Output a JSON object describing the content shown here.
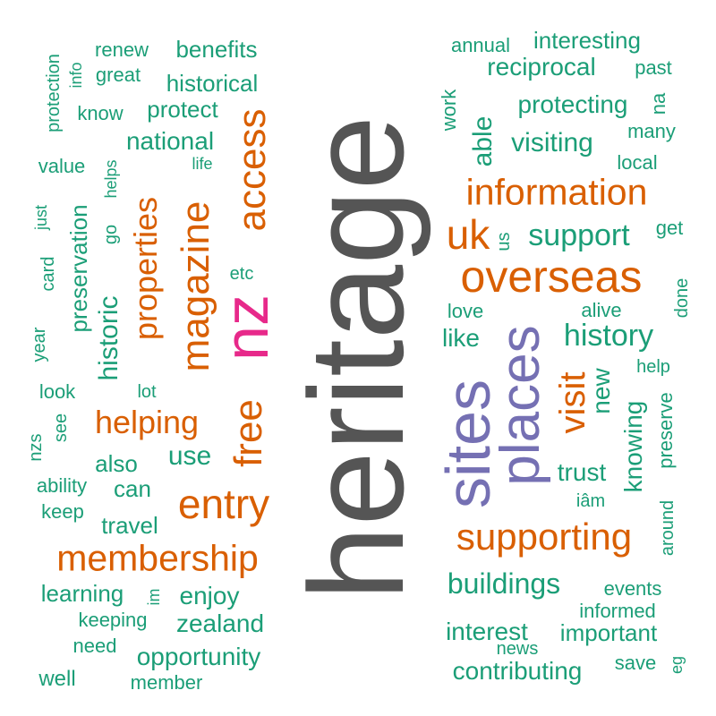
{
  "colors": {
    "gray": "#555555",
    "pink": "#e7298a",
    "purple": "#7570b3",
    "orange": "#d95f02",
    "green": "#1b9e77"
  },
  "words": [
    {
      "id": "heritage",
      "text": "heritage",
      "color": "gray"
    },
    {
      "id": "nz",
      "text": "nz",
      "color": "pink"
    },
    {
      "id": "sites",
      "text": "sites",
      "color": "purple"
    },
    {
      "id": "places",
      "text": "places",
      "color": "purple"
    },
    {
      "id": "overseas",
      "text": "overseas",
      "color": "orange"
    },
    {
      "id": "information",
      "text": "information",
      "color": "orange"
    },
    {
      "id": "uk",
      "text": "uk",
      "color": "orange"
    },
    {
      "id": "supporting",
      "text": "supporting",
      "color": "orange"
    },
    {
      "id": "membership",
      "text": "membership",
      "color": "orange"
    },
    {
      "id": "entry",
      "text": "entry",
      "color": "orange"
    },
    {
      "id": "access",
      "text": "access",
      "color": "orange"
    },
    {
      "id": "free",
      "text": "free",
      "color": "orange"
    },
    {
      "id": "magazine",
      "text": "magazine",
      "color": "orange"
    },
    {
      "id": "properties",
      "text": "properties",
      "color": "orange"
    },
    {
      "id": "helping",
      "text": "helping",
      "color": "orange"
    },
    {
      "id": "visit",
      "text": "visit",
      "color": "orange"
    },
    {
      "id": "history",
      "text": "history",
      "color": "green"
    },
    {
      "id": "support",
      "text": "support",
      "color": "green"
    },
    {
      "id": "visiting",
      "text": "visiting",
      "color": "green"
    },
    {
      "id": "able",
      "text": "able",
      "color": "green"
    },
    {
      "id": "protecting",
      "text": "protecting",
      "color": "green"
    },
    {
      "id": "reciprocal",
      "text": "reciprocal",
      "color": "green"
    },
    {
      "id": "interesting",
      "text": "interesting",
      "color": "green"
    },
    {
      "id": "annual",
      "text": "annual",
      "color": "green"
    },
    {
      "id": "past",
      "text": "past",
      "color": "green"
    },
    {
      "id": "na",
      "text": "na",
      "color": "green"
    },
    {
      "id": "many",
      "text": "many",
      "color": "green"
    },
    {
      "id": "work",
      "text": "work",
      "color": "green"
    },
    {
      "id": "local",
      "text": "local",
      "color": "green"
    },
    {
      "id": "get",
      "text": "get",
      "color": "green"
    },
    {
      "id": "us",
      "text": "us",
      "color": "green"
    },
    {
      "id": "done",
      "text": "done",
      "color": "green"
    },
    {
      "id": "alive",
      "text": "alive",
      "color": "green"
    },
    {
      "id": "love",
      "text": "love",
      "color": "green"
    },
    {
      "id": "like",
      "text": "like",
      "color": "green"
    },
    {
      "id": "help",
      "text": "help",
      "color": "green"
    },
    {
      "id": "new",
      "text": "new",
      "color": "green"
    },
    {
      "id": "knowing",
      "text": "knowing",
      "color": "green"
    },
    {
      "id": "preserve",
      "text": "preserve",
      "color": "green"
    },
    {
      "id": "trust",
      "text": "trust",
      "color": "green"
    },
    {
      "id": "iam",
      "text": "iâm",
      "color": "green"
    },
    {
      "id": "around",
      "text": "around",
      "color": "green"
    },
    {
      "id": "buildings",
      "text": "buildings",
      "color": "green"
    },
    {
      "id": "events",
      "text": "events",
      "color": "green"
    },
    {
      "id": "informed",
      "text": "informed",
      "color": "green"
    },
    {
      "id": "interest",
      "text": "interest",
      "color": "green"
    },
    {
      "id": "important",
      "text": "important",
      "color": "green"
    },
    {
      "id": "news",
      "text": "news",
      "color": "green"
    },
    {
      "id": "save",
      "text": "save",
      "color": "green"
    },
    {
      "id": "eg",
      "text": "eg",
      "color": "green"
    },
    {
      "id": "contributing",
      "text": "contributing",
      "color": "green"
    },
    {
      "id": "renew",
      "text": "renew",
      "color": "green"
    },
    {
      "id": "benefits",
      "text": "benefits",
      "color": "green"
    },
    {
      "id": "great",
      "text": "great",
      "color": "green"
    },
    {
      "id": "historical",
      "text": "historical",
      "color": "green"
    },
    {
      "id": "know",
      "text": "know",
      "color": "green"
    },
    {
      "id": "protect",
      "text": "protect",
      "color": "green"
    },
    {
      "id": "national",
      "text": "national",
      "color": "green"
    },
    {
      "id": "protection",
      "text": "protection",
      "color": "green"
    },
    {
      "id": "info",
      "text": "info",
      "color": "green"
    },
    {
      "id": "value",
      "text": "value",
      "color": "green"
    },
    {
      "id": "helps",
      "text": "helps",
      "color": "green"
    },
    {
      "id": "life",
      "text": "life",
      "color": "green"
    },
    {
      "id": "just",
      "text": "just",
      "color": "green"
    },
    {
      "id": "card",
      "text": "card",
      "color": "green"
    },
    {
      "id": "preservation",
      "text": "preservation",
      "color": "green"
    },
    {
      "id": "go",
      "text": "go",
      "color": "green"
    },
    {
      "id": "etc",
      "text": "etc",
      "color": "green"
    },
    {
      "id": "historic",
      "text": "historic",
      "color": "green"
    },
    {
      "id": "year",
      "text": "year",
      "color": "green"
    },
    {
      "id": "look",
      "text": "look",
      "color": "green"
    },
    {
      "id": "lot",
      "text": "lot",
      "color": "green"
    },
    {
      "id": "see",
      "text": "see",
      "color": "green"
    },
    {
      "id": "nzs",
      "text": "nzs",
      "color": "green"
    },
    {
      "id": "also",
      "text": "also",
      "color": "green"
    },
    {
      "id": "use",
      "text": "use",
      "color": "green"
    },
    {
      "id": "ability",
      "text": "ability",
      "color": "green"
    },
    {
      "id": "can",
      "text": "can",
      "color": "green"
    },
    {
      "id": "keep",
      "text": "keep",
      "color": "green"
    },
    {
      "id": "travel",
      "text": "travel",
      "color": "green"
    },
    {
      "id": "learning",
      "text": "learning",
      "color": "green"
    },
    {
      "id": "im",
      "text": "im",
      "color": "green"
    },
    {
      "id": "enjoy",
      "text": "enjoy",
      "color": "green"
    },
    {
      "id": "keeping",
      "text": "keeping",
      "color": "green"
    },
    {
      "id": "zealand",
      "text": "zealand",
      "color": "green"
    },
    {
      "id": "need",
      "text": "need",
      "color": "green"
    },
    {
      "id": "opportunity",
      "text": "opportunity",
      "color": "green"
    },
    {
      "id": "well",
      "text": "well",
      "color": "green"
    },
    {
      "id": "member",
      "text": "member",
      "color": "green"
    }
  ]
}
